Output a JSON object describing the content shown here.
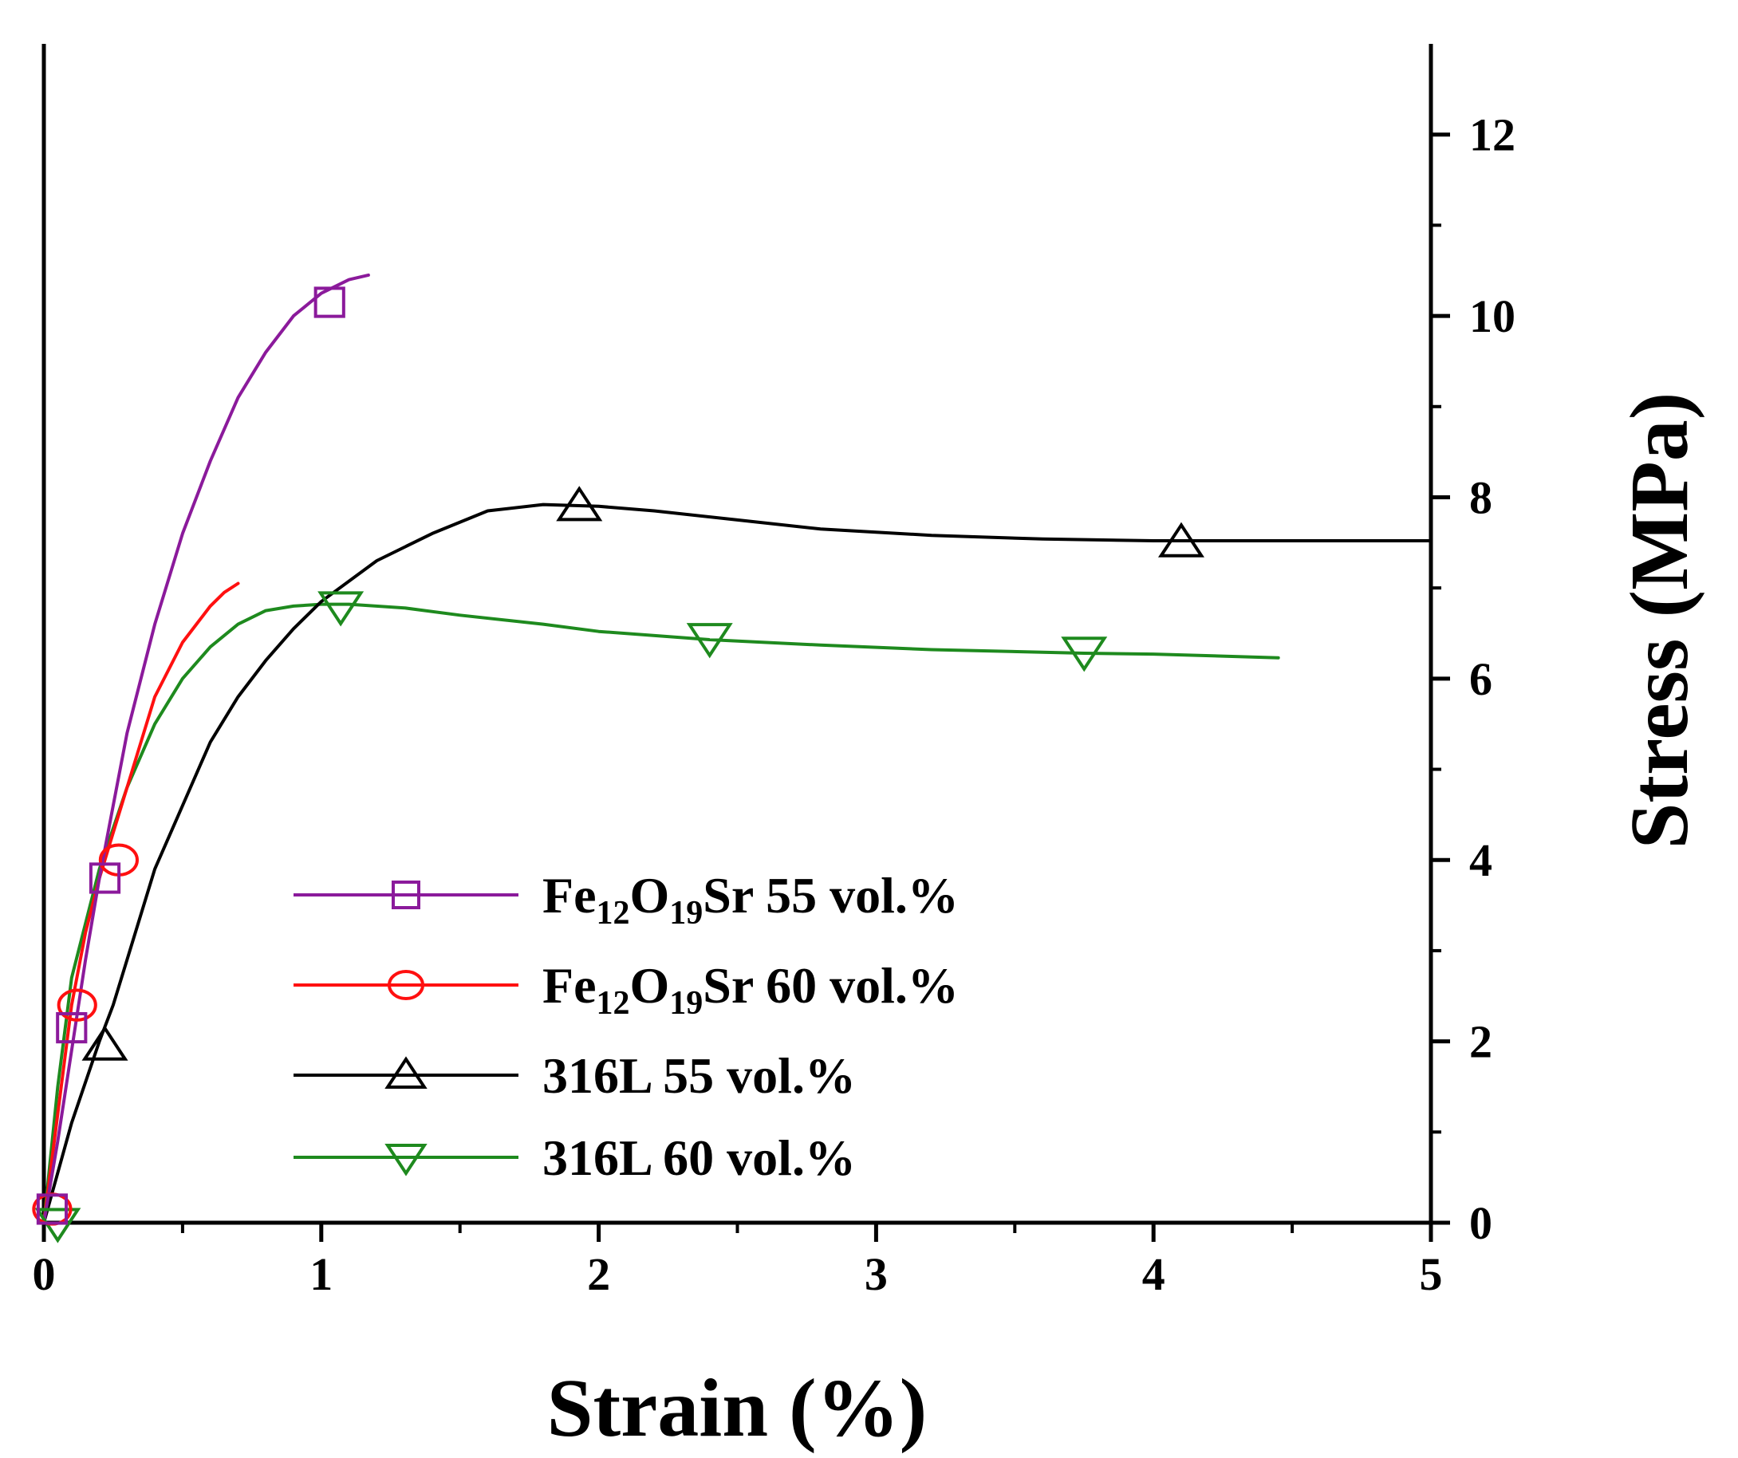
{
  "chart_data": {
    "type": "line",
    "title": "",
    "xlabel": "Strain (%)",
    "ylabel": "Stress (MPa)",
    "xlim": [
      0,
      5
    ],
    "ylim": [
      0,
      13
    ],
    "x_ticks": [
      "0",
      "1",
      "2",
      "3",
      "4",
      "5"
    ],
    "y_ticks": [
      "0",
      "2",
      "4",
      "6",
      "8",
      "10",
      "12"
    ],
    "y_axis_side": "right",
    "grid": false,
    "legend_position": "bottom-center",
    "series": [
      {
        "name": "Fe12O19Sr 55 vol.%",
        "legend_parts": [
          "Fe",
          "12",
          "O",
          "19",
          "Sr 55 vol.%"
        ],
        "color": "#8B1A9B",
        "marker": "square",
        "x": [
          0,
          0.05,
          0.1,
          0.15,
          0.2,
          0.25,
          0.3,
          0.4,
          0.5,
          0.6,
          0.7,
          0.8,
          0.9,
          1.0,
          1.1,
          1.17
        ],
        "y": [
          0,
          0.9,
          1.9,
          2.9,
          3.8,
          4.6,
          5.4,
          6.6,
          7.6,
          8.4,
          9.1,
          9.6,
          10.0,
          10.25,
          10.4,
          10.45
        ],
        "markers_x": [
          0.03,
          0.1,
          0.22,
          1.03
        ],
        "markers_y": [
          0.15,
          2.15,
          3.8,
          10.15
        ]
      },
      {
        "name": "Fe12O19Sr 60 vol.%",
        "legend_parts": [
          "Fe",
          "12",
          "O",
          "19",
          "Sr 60 vol.%"
        ],
        "color": "#FF1010",
        "marker": "circle",
        "x": [
          0,
          0.05,
          0.1,
          0.15,
          0.2,
          0.25,
          0.3,
          0.35,
          0.4,
          0.45,
          0.5,
          0.55,
          0.6,
          0.65,
          0.7
        ],
        "y": [
          0,
          1.2,
          2.4,
          3.2,
          3.8,
          4.3,
          4.8,
          5.3,
          5.8,
          6.1,
          6.4,
          6.6,
          6.8,
          6.95,
          7.05
        ],
        "markers_x": [
          0.03,
          0.12,
          0.27
        ],
        "markers_y": [
          0.15,
          2.4,
          4.0
        ]
      },
      {
        "name": "316L 55 vol.%",
        "legend_parts": [
          "316L 55 vol.%"
        ],
        "color": "#000000",
        "marker": "triangle-up",
        "x": [
          0,
          0.1,
          0.2,
          0.25,
          0.3,
          0.4,
          0.5,
          0.6,
          0.7,
          0.8,
          0.9,
          1.0,
          1.2,
          1.4,
          1.6,
          1.8,
          2.0,
          2.2,
          2.5,
          2.8,
          3.2,
          3.6,
          4.0,
          4.5,
          5.0
        ],
        "y": [
          0,
          1.1,
          2.0,
          2.4,
          2.9,
          3.9,
          4.6,
          5.3,
          5.8,
          6.2,
          6.55,
          6.85,
          7.3,
          7.6,
          7.85,
          7.92,
          7.9,
          7.85,
          7.75,
          7.65,
          7.58,
          7.54,
          7.52,
          7.52,
          7.52
        ],
        "markers_x": [
          0.22,
          1.93,
          4.1
        ],
        "markers_y": [
          1.95,
          7.9,
          7.5
        ]
      },
      {
        "name": "316L 60 vol.%",
        "legend_parts": [
          "316L 60 vol.%"
        ],
        "color": "#1E8A1E",
        "marker": "triangle-down",
        "x": [
          0,
          0.05,
          0.1,
          0.2,
          0.3,
          0.4,
          0.5,
          0.6,
          0.7,
          0.8,
          0.9,
          1.0,
          1.1,
          1.3,
          1.5,
          1.8,
          2.0,
          2.4,
          2.8,
          3.2,
          3.75,
          4.0,
          4.45
        ],
        "y": [
          0,
          1.5,
          2.7,
          3.9,
          4.8,
          5.5,
          6.0,
          6.35,
          6.6,
          6.75,
          6.8,
          6.82,
          6.82,
          6.78,
          6.7,
          6.6,
          6.52,
          6.43,
          6.37,
          6.32,
          6.28,
          6.27,
          6.23
        ],
        "markers_x": [
          0.05,
          1.07,
          2.4,
          3.75
        ],
        "markers_y": [
          0.0,
          6.8,
          6.45,
          6.3
        ]
      }
    ]
  }
}
